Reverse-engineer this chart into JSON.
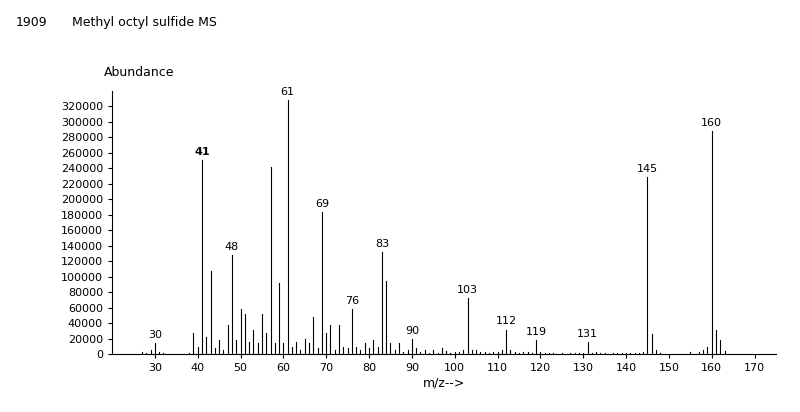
{
  "title_id": "1909",
  "title_name": "Methyl octyl sulfide MS",
  "ylabel": "Abundance",
  "xlabel": "m/z-->",
  "xlim": [
    20,
    175
  ],
  "ylim": [
    0,
    340000
  ],
  "xticks": [
    30,
    40,
    50,
    60,
    70,
    80,
    90,
    100,
    110,
    120,
    130,
    140,
    150,
    160,
    170
  ],
  "yticks": [
    0,
    20000,
    40000,
    60000,
    80000,
    100000,
    120000,
    140000,
    160000,
    180000,
    200000,
    220000,
    240000,
    260000,
    280000,
    300000,
    320000
  ],
  "background_color": "#ffffff",
  "peaks": [
    [
      27,
      3000
    ],
    [
      28,
      2000
    ],
    [
      29,
      6000
    ],
    [
      30,
      14000
    ],
    [
      31,
      3000
    ],
    [
      32,
      1500
    ],
    [
      33,
      1000
    ],
    [
      35,
      800
    ],
    [
      37,
      1000
    ],
    [
      38,
      2000
    ],
    [
      39,
      28000
    ],
    [
      40,
      10000
    ],
    [
      41,
      250000
    ],
    [
      42,
      22000
    ],
    [
      43,
      108000
    ],
    [
      44,
      8000
    ],
    [
      45,
      18000
    ],
    [
      46,
      6000
    ],
    [
      47,
      38000
    ],
    [
      48,
      128000
    ],
    [
      49,
      18000
    ],
    [
      50,
      58000
    ],
    [
      51,
      52000
    ],
    [
      52,
      16000
    ],
    [
      53,
      32000
    ],
    [
      54,
      14000
    ],
    [
      55,
      52000
    ],
    [
      56,
      28000
    ],
    [
      57,
      242000
    ],
    [
      58,
      14000
    ],
    [
      59,
      92000
    ],
    [
      60,
      14000
    ],
    [
      61,
      328000
    ],
    [
      62,
      10000
    ],
    [
      63,
      16000
    ],
    [
      64,
      6000
    ],
    [
      65,
      20000
    ],
    [
      66,
      14000
    ],
    [
      67,
      48000
    ],
    [
      68,
      8000
    ],
    [
      69,
      183000
    ],
    [
      70,
      28000
    ],
    [
      71,
      38000
    ],
    [
      72,
      6000
    ],
    [
      73,
      38000
    ],
    [
      74,
      10000
    ],
    [
      75,
      8000
    ],
    [
      76,
      58000
    ],
    [
      77,
      10000
    ],
    [
      78,
      6000
    ],
    [
      79,
      14000
    ],
    [
      80,
      8000
    ],
    [
      81,
      18000
    ],
    [
      82,
      10000
    ],
    [
      83,
      132000
    ],
    [
      84,
      95000
    ],
    [
      85,
      14000
    ],
    [
      86,
      5000
    ],
    [
      87,
      14000
    ],
    [
      88,
      3000
    ],
    [
      89,
      5000
    ],
    [
      90,
      20000
    ],
    [
      91,
      8000
    ],
    [
      92,
      3000
    ],
    [
      93,
      5000
    ],
    [
      94,
      2000
    ],
    [
      95,
      5000
    ],
    [
      96,
      2000
    ],
    [
      97,
      8000
    ],
    [
      98,
      4000
    ],
    [
      99,
      2000
    ],
    [
      100,
      3000
    ],
    [
      101,
      3000
    ],
    [
      102,
      5000
    ],
    [
      103,
      72000
    ],
    [
      104,
      6000
    ],
    [
      105,
      5000
    ],
    [
      106,
      3000
    ],
    [
      107,
      3000
    ],
    [
      108,
      2000
    ],
    [
      109,
      3000
    ],
    [
      110,
      3000
    ],
    [
      111,
      5000
    ],
    [
      112,
      32000
    ],
    [
      113,
      6000
    ],
    [
      114,
      3000
    ],
    [
      115,
      2000
    ],
    [
      116,
      3000
    ],
    [
      117,
      3000
    ],
    [
      118,
      2000
    ],
    [
      119,
      18000
    ],
    [
      120,
      3000
    ],
    [
      121,
      2000
    ],
    [
      122,
      1500
    ],
    [
      123,
      2000
    ],
    [
      125,
      1500
    ],
    [
      127,
      2000
    ],
    [
      128,
      2000
    ],
    [
      129,
      2000
    ],
    [
      130,
      2000
    ],
    [
      131,
      16000
    ],
    [
      132,
      2000
    ],
    [
      133,
      3000
    ],
    [
      134,
      1500
    ],
    [
      135,
      1500
    ],
    [
      137,
      2000
    ],
    [
      138,
      1500
    ],
    [
      139,
      1500
    ],
    [
      140,
      1500
    ],
    [
      141,
      1500
    ],
    [
      142,
      1500
    ],
    [
      143,
      2000
    ],
    [
      144,
      3000
    ],
    [
      145,
      228000
    ],
    [
      146,
      26000
    ],
    [
      147,
      6000
    ],
    [
      148,
      2000
    ],
    [
      155,
      3000
    ],
    [
      157,
      3000
    ],
    [
      158,
      5000
    ],
    [
      159,
      10000
    ],
    [
      160,
      288000
    ],
    [
      161,
      32000
    ],
    [
      162,
      18000
    ],
    [
      163,
      4000
    ]
  ],
  "labeled_peaks": [
    [
      30,
      "30",
      "normal"
    ],
    [
      41,
      "41",
      "bold"
    ],
    [
      48,
      "48",
      "normal"
    ],
    [
      61,
      "61",
      "normal"
    ],
    [
      69,
      "69",
      "normal"
    ],
    [
      76,
      "76",
      "normal"
    ],
    [
      83,
      "83",
      "normal"
    ],
    [
      90,
      "90",
      "normal"
    ],
    [
      103,
      "103",
      "normal"
    ],
    [
      112,
      "112",
      "normal"
    ],
    [
      119,
      "119",
      "normal"
    ],
    [
      131,
      "131",
      "normal"
    ],
    [
      145,
      "145",
      "normal"
    ],
    [
      160,
      "160",
      "normal"
    ]
  ]
}
